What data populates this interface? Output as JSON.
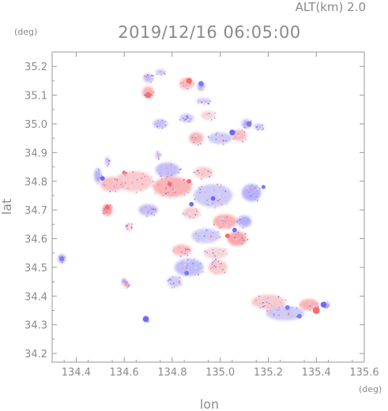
{
  "header": {
    "altitude_label": "ALT(km) 2.0",
    "timestamp": "2019/12/16 06:05:00",
    "y_unit": "(deg)",
    "x_unit": "(deg)"
  },
  "chart_data": {
    "type": "heatmap",
    "title": "2019/12/16 06:05:00",
    "xlabel": "lon",
    "ylabel": "lat",
    "xlim": [
      134.3,
      135.6
    ],
    "ylim": [
      34.17,
      35.25
    ],
    "x_ticks": [
      "134.4",
      "134.6",
      "134.8",
      "135.0",
      "135.2",
      "135.4",
      "135.6"
    ],
    "y_ticks": [
      "34.2",
      "34.3",
      "34.4",
      "34.5",
      "34.6",
      "34.7",
      "34.8",
      "34.9",
      "35.0",
      "35.1",
      "35.2"
    ],
    "grid": false,
    "colors": {
      "positive": "#ff5a5a",
      "negative": "#5a5aff",
      "neutral": "#f3eef3",
      "frame": "#9a9a9a"
    },
    "patches": [
      {
        "lon": 134.34,
        "lat": 34.53,
        "w": 0.03,
        "h": 0.03,
        "v": -0.6
      },
      {
        "lon": 134.49,
        "lat": 34.82,
        "w": 0.03,
        "h": 0.05,
        "v": -0.5
      },
      {
        "lon": 134.55,
        "lat": 34.79,
        "w": 0.1,
        "h": 0.05,
        "v": 0.4
      },
      {
        "lon": 134.64,
        "lat": 34.8,
        "w": 0.16,
        "h": 0.07,
        "v": 0.3
      },
      {
        "lon": 134.8,
        "lat": 34.78,
        "w": 0.16,
        "h": 0.07,
        "v": 0.5
      },
      {
        "lon": 134.97,
        "lat": 34.75,
        "w": 0.16,
        "h": 0.08,
        "v": -0.3
      },
      {
        "lon": 135.13,
        "lat": 34.76,
        "w": 0.08,
        "h": 0.06,
        "v": -0.5
      },
      {
        "lon": 134.78,
        "lat": 34.84,
        "w": 0.1,
        "h": 0.05,
        "v": -0.4
      },
      {
        "lon": 134.93,
        "lat": 34.83,
        "w": 0.08,
        "h": 0.04,
        "v": 0.3
      },
      {
        "lon": 134.53,
        "lat": 34.7,
        "w": 0.04,
        "h": 0.04,
        "v": 0.8
      },
      {
        "lon": 134.7,
        "lat": 34.7,
        "w": 0.08,
        "h": 0.04,
        "v": -0.4
      },
      {
        "lon": 134.88,
        "lat": 34.69,
        "w": 0.07,
        "h": 0.04,
        "v": 0.3
      },
      {
        "lon": 135.02,
        "lat": 34.66,
        "w": 0.1,
        "h": 0.05,
        "v": 0.5
      },
      {
        "lon": 135.1,
        "lat": 34.66,
        "w": 0.06,
        "h": 0.04,
        "v": -0.5
      },
      {
        "lon": 134.94,
        "lat": 34.61,
        "w": 0.12,
        "h": 0.05,
        "v": -0.3
      },
      {
        "lon": 135.07,
        "lat": 34.6,
        "w": 0.08,
        "h": 0.05,
        "v": 0.6
      },
      {
        "lon": 134.84,
        "lat": 34.56,
        "w": 0.08,
        "h": 0.04,
        "v": 0.4
      },
      {
        "lon": 134.98,
        "lat": 34.55,
        "w": 0.1,
        "h": 0.04,
        "v": 0.2
      },
      {
        "lon": 134.87,
        "lat": 34.5,
        "w": 0.12,
        "h": 0.06,
        "v": -0.4
      },
      {
        "lon": 134.99,
        "lat": 34.5,
        "w": 0.08,
        "h": 0.05,
        "v": 0.3
      },
      {
        "lon": 134.81,
        "lat": 34.45,
        "w": 0.06,
        "h": 0.04,
        "v": -0.3
      },
      {
        "lon": 134.6,
        "lat": 34.45,
        "w": 0.02,
        "h": 0.02,
        "v": -0.7
      },
      {
        "lon": 134.61,
        "lat": 34.44,
        "w": 0.02,
        "h": 0.02,
        "v": 0.7
      },
      {
        "lon": 134.69,
        "lat": 34.32,
        "w": 0.02,
        "h": 0.02,
        "v": -0.8
      },
      {
        "lon": 134.62,
        "lat": 34.64,
        "w": 0.03,
        "h": 0.03,
        "v": 0.2
      },
      {
        "lon": 134.53,
        "lat": 34.87,
        "w": 0.02,
        "h": 0.03,
        "v": -0.4
      },
      {
        "lon": 134.74,
        "lat": 34.89,
        "w": 0.02,
        "h": 0.03,
        "v": -0.3
      },
      {
        "lon": 134.9,
        "lat": 34.95,
        "w": 0.06,
        "h": 0.04,
        "v": 0.5
      },
      {
        "lon": 135.0,
        "lat": 34.95,
        "w": 0.1,
        "h": 0.04,
        "v": -0.3
      },
      {
        "lon": 135.08,
        "lat": 34.96,
        "w": 0.06,
        "h": 0.04,
        "v": 0.4
      },
      {
        "lon": 134.75,
        "lat": 35.0,
        "w": 0.06,
        "h": 0.03,
        "v": -0.4
      },
      {
        "lon": 134.86,
        "lat": 35.02,
        "w": 0.06,
        "h": 0.03,
        "v": -0.3
      },
      {
        "lon": 134.95,
        "lat": 35.03,
        "w": 0.06,
        "h": 0.03,
        "v": 0.2
      },
      {
        "lon": 135.11,
        "lat": 35.0,
        "w": 0.04,
        "h": 0.03,
        "v": -0.5
      },
      {
        "lon": 135.16,
        "lat": 34.99,
        "w": 0.04,
        "h": 0.02,
        "v": -0.4
      },
      {
        "lon": 134.7,
        "lat": 35.11,
        "w": 0.05,
        "h": 0.04,
        "v": 0.5
      },
      {
        "lon": 134.7,
        "lat": 35.16,
        "w": 0.04,
        "h": 0.03,
        "v": -0.4
      },
      {
        "lon": 134.75,
        "lat": 35.18,
        "w": 0.04,
        "h": 0.02,
        "v": -0.3
      },
      {
        "lon": 134.86,
        "lat": 35.14,
        "w": 0.06,
        "h": 0.04,
        "v": 0.4
      },
      {
        "lon": 134.92,
        "lat": 35.13,
        "w": 0.03,
        "h": 0.03,
        "v": -0.5
      },
      {
        "lon": 134.93,
        "lat": 35.08,
        "w": 0.06,
        "h": 0.02,
        "v": -0.3
      },
      {
        "lon": 135.2,
        "lat": 34.38,
        "w": 0.14,
        "h": 0.05,
        "v": 0.3
      },
      {
        "lon": 135.27,
        "lat": 34.34,
        "w": 0.16,
        "h": 0.05,
        "v": -0.3
      },
      {
        "lon": 135.37,
        "lat": 34.37,
        "w": 0.08,
        "h": 0.04,
        "v": 0.5
      },
      {
        "lon": 135.44,
        "lat": 34.37,
        "w": 0.03,
        "h": 0.02,
        "v": -0.6
      }
    ],
    "spots": [
      {
        "lon": 135.4,
        "lat": 34.35,
        "r": 0.012,
        "v": 0.9
      },
      {
        "lon": 135.43,
        "lat": 34.37,
        "r": 0.01,
        "v": -0.9
      },
      {
        "lon": 134.69,
        "lat": 34.32,
        "r": 0.01,
        "v": -0.9
      },
      {
        "lon": 135.05,
        "lat": 34.97,
        "r": 0.01,
        "v": -0.9
      },
      {
        "lon": 135.12,
        "lat": 35.0,
        "r": 0.009,
        "v": -0.8
      },
      {
        "lon": 134.7,
        "lat": 35.1,
        "r": 0.01,
        "v": 0.9
      },
      {
        "lon": 134.87,
        "lat": 35.15,
        "r": 0.01,
        "v": 0.9
      },
      {
        "lon": 134.92,
        "lat": 35.14,
        "r": 0.009,
        "v": -0.8
      },
      {
        "lon": 134.87,
        "lat": 34.8,
        "r": 0.008,
        "v": 0.9
      },
      {
        "lon": 134.79,
        "lat": 34.79,
        "r": 0.008,
        "v": 0.9
      },
      {
        "lon": 134.88,
        "lat": 34.72,
        "r": 0.008,
        "v": -0.9
      },
      {
        "lon": 134.97,
        "lat": 34.74,
        "r": 0.008,
        "v": -0.9
      },
      {
        "lon": 135.03,
        "lat": 34.61,
        "r": 0.008,
        "v": 0.9
      },
      {
        "lon": 135.06,
        "lat": 34.63,
        "r": 0.008,
        "v": -0.9
      },
      {
        "lon": 134.86,
        "lat": 34.48,
        "r": 0.008,
        "v": -0.8
      },
      {
        "lon": 134.53,
        "lat": 34.71,
        "r": 0.008,
        "v": 0.9
      },
      {
        "lon": 134.51,
        "lat": 34.81,
        "r": 0.008,
        "v": -0.9
      },
      {
        "lon": 135.33,
        "lat": 34.33,
        "r": 0.008,
        "v": -0.8
      },
      {
        "lon": 135.28,
        "lat": 34.36,
        "r": 0.008,
        "v": -0.8
      },
      {
        "lon": 135.18,
        "lat": 34.78,
        "r": 0.007,
        "v": -0.8
      },
      {
        "lon": 134.6,
        "lat": 34.83,
        "r": 0.007,
        "v": 0.8
      },
      {
        "lon": 134.34,
        "lat": 34.53,
        "r": 0.008,
        "v": -0.8
      }
    ]
  }
}
